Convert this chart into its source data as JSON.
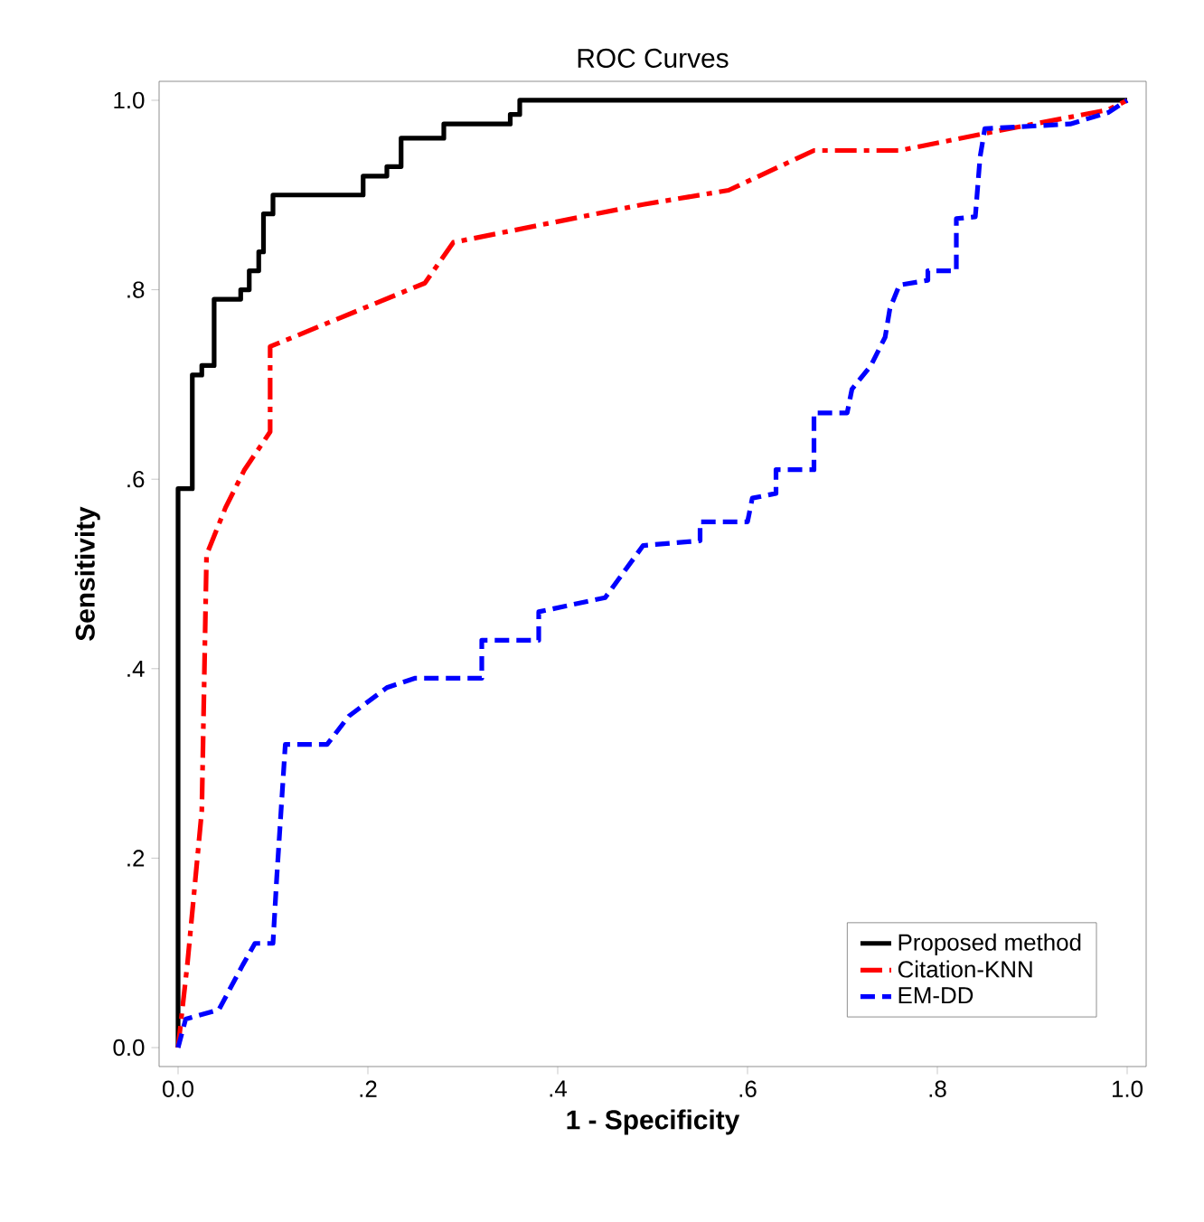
{
  "chart_data": {
    "type": "line",
    "title": "ROC Curves",
    "xlabel": "1 - Specificity",
    "ylabel": "Sensitivity",
    "xlim": [
      -0.02,
      1.02
    ],
    "ylim": [
      -0.02,
      1.02
    ],
    "xticks": [
      {
        "value": 0,
        "label": "0.0"
      },
      {
        "value": 0.2,
        "label": ".2"
      },
      {
        "value": 0.4,
        "label": ".4"
      },
      {
        "value": 0.6,
        "label": ".6"
      },
      {
        "value": 0.8,
        "label": ".8"
      },
      {
        "value": 1,
        "label": "1.0"
      }
    ],
    "yticks": [
      {
        "value": 0,
        "label": "0.0"
      },
      {
        "value": 0.2,
        "label": ".2"
      },
      {
        "value": 0.4,
        "label": ".4"
      },
      {
        "value": 0.6,
        "label": ".6"
      },
      {
        "value": 0.8,
        "label": ".8"
      },
      {
        "value": 1,
        "label": "1.0"
      }
    ],
    "grid": false,
    "legend": "bottom right",
    "marker": "none",
    "series": [
      {
        "name": "Proposed method",
        "color": "#000000",
        "line_style": "solid",
        "x": [
          0,
          0,
          0.015,
          0.015,
          0.025,
          0.025,
          0.038,
          0.038,
          0.066,
          0.066,
          0.075,
          0.075,
          0.085,
          0.085,
          0.09,
          0.09,
          0.1,
          0.1,
          0.195,
          0.195,
          0.22,
          0.22,
          0.235,
          0.235,
          0.28,
          0.28,
          0.35,
          0.35,
          0.36,
          0.36,
          1
        ],
        "values": [
          0,
          0.59,
          0.59,
          0.71,
          0.71,
          0.72,
          0.72,
          0.79,
          0.79,
          0.8,
          0.8,
          0.82,
          0.82,
          0.84,
          0.84,
          0.88,
          0.88,
          0.9,
          0.9,
          0.92,
          0.92,
          0.93,
          0.93,
          0.96,
          0.96,
          0.975,
          0.975,
          0.985,
          0.985,
          1,
          1
        ]
      },
      {
        "name": "Citation-KNN",
        "color": "#ff0000",
        "line_style": "dashed",
        "x": [
          0,
          0.01,
          0.025,
          0.03,
          0.05,
          0.07,
          0.097,
          0.097,
          0.26,
          0.29,
          0.49,
          0.58,
          0.67,
          0.76,
          0.85,
          0.98,
          1
        ],
        "values": [
          0,
          0.09,
          0.25,
          0.52,
          0.57,
          0.61,
          0.65,
          0.74,
          0.807,
          0.85,
          0.89,
          0.905,
          0.947,
          0.947,
          0.965,
          0.99,
          1
        ]
      },
      {
        "name": "EM-DD",
        "color": "#0000ff",
        "line_style": "dashed",
        "x": [
          0,
          0.008,
          0.043,
          0.068,
          0.081,
          0.1,
          0.104,
          0.113,
          0.157,
          0.18,
          0.22,
          0.25,
          0.32,
          0.32,
          0.38,
          0.38,
          0.45,
          0.49,
          0.55,
          0.55,
          0.6,
          0.605,
          0.63,
          0.63,
          0.67,
          0.67,
          0.705,
          0.71,
          0.73,
          0.745,
          0.75,
          0.76,
          0.79,
          0.79,
          0.82,
          0.82,
          0.84,
          0.845,
          0.85,
          0.94,
          0.98,
          1
        ],
        "values": [
          0,
          0.03,
          0.04,
          0.087,
          0.11,
          0.11,
          0.18,
          0.32,
          0.32,
          0.35,
          0.38,
          0.39,
          0.39,
          0.43,
          0.43,
          0.46,
          0.475,
          0.53,
          0.535,
          0.555,
          0.555,
          0.58,
          0.585,
          0.61,
          0.61,
          0.67,
          0.67,
          0.695,
          0.72,
          0.75,
          0.78,
          0.805,
          0.81,
          0.82,
          0.82,
          0.875,
          0.877,
          0.94,
          0.97,
          0.975,
          0.987,
          1
        ]
      }
    ]
  }
}
